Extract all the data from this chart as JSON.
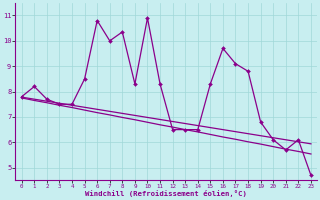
{
  "x": [
    0,
    1,
    2,
    3,
    4,
    5,
    6,
    7,
    8,
    9,
    10,
    11,
    12,
    13,
    14,
    15,
    16,
    17,
    18,
    19,
    20,
    21,
    22,
    23
  ],
  "y_main": [
    7.8,
    8.2,
    7.7,
    7.5,
    7.5,
    8.5,
    10.8,
    10.0,
    10.35,
    8.3,
    10.9,
    8.3,
    6.5,
    6.5,
    6.5,
    8.3,
    9.7,
    9.1,
    8.8,
    6.8,
    6.1,
    5.7,
    6.1,
    4.7
  ],
  "y_line1": [
    7.75,
    7.65,
    7.56,
    7.46,
    7.37,
    7.27,
    7.17,
    7.08,
    6.98,
    6.89,
    6.79,
    6.69,
    6.6,
    6.5,
    6.41,
    6.31,
    6.21,
    6.12,
    6.02,
    5.93,
    5.83,
    5.73,
    5.64,
    5.54
  ],
  "y_line2": [
    7.78,
    7.7,
    7.62,
    7.54,
    7.46,
    7.38,
    7.3,
    7.22,
    7.14,
    7.06,
    6.98,
    6.9,
    6.82,
    6.74,
    6.66,
    6.58,
    6.5,
    6.42,
    6.34,
    6.26,
    6.18,
    6.1,
    6.02,
    5.94
  ],
  "line_color": "#8b008b",
  "bg_color": "#c8eef0",
  "grid_color": "#a0d8d8",
  "xlabel": "Windchill (Refroidissement éolien,°C)",
  "ylim": [
    4.5,
    11.5
  ],
  "xlim": [
    -0.5,
    23.5
  ],
  "yticks": [
    5,
    6,
    7,
    8,
    9,
    10,
    11
  ],
  "xticks": [
    0,
    1,
    2,
    3,
    4,
    5,
    6,
    7,
    8,
    9,
    10,
    11,
    12,
    13,
    14,
    15,
    16,
    17,
    18,
    19,
    20,
    21,
    22,
    23
  ],
  "xticklabels": [
    "0",
    "1",
    "2",
    "3",
    "4",
    "5",
    "6",
    "7",
    "8",
    "9",
    "10",
    "11",
    "12",
    "13",
    "14",
    "15",
    "16",
    "17",
    "18",
    "19",
    "20",
    "21",
    "22",
    "23"
  ]
}
